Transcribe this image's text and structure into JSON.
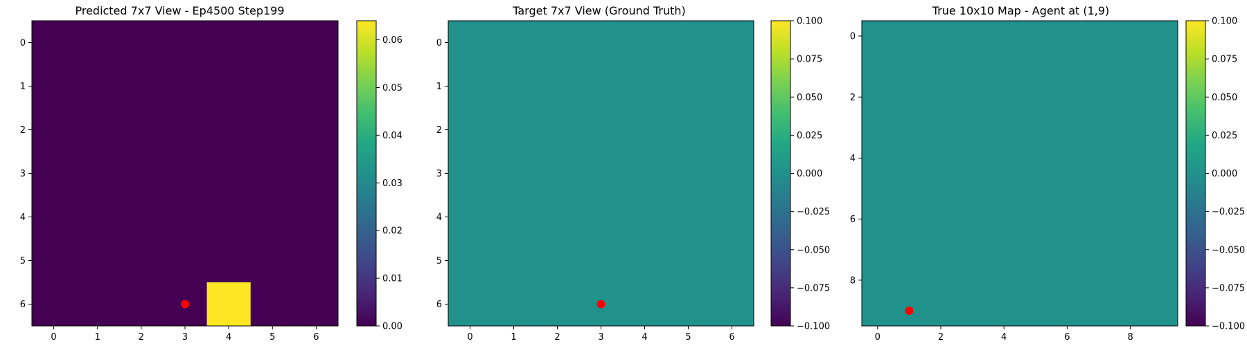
{
  "chart_data": [
    {
      "type": "heatmap",
      "title": "Predicted 7x7 View - Ep4500 Step199",
      "rows": 7,
      "cols": 7,
      "x_ticks": [
        0,
        1,
        2,
        3,
        4,
        5,
        6
      ],
      "y_ticks": [
        0,
        1,
        2,
        3,
        4,
        5,
        6
      ],
      "default_value": 0.0,
      "cells": [
        {
          "row": 6,
          "col": 4,
          "value": 0.064
        }
      ],
      "vmin": 0.0,
      "vmax": 0.064,
      "colormap": "viridis",
      "colorbar_ticks": [
        "0.00",
        "0.01",
        "0.02",
        "0.03",
        "0.04",
        "0.05",
        "0.06"
      ],
      "colorbar_tick_values": [
        0.0,
        0.01,
        0.02,
        0.03,
        0.04,
        0.05,
        0.06
      ],
      "agent_marker": {
        "x": 3,
        "y": 6,
        "color": "#ff0000"
      }
    },
    {
      "type": "heatmap",
      "title": "Target 7x7 View (Ground Truth)",
      "rows": 7,
      "cols": 7,
      "x_ticks": [
        0,
        1,
        2,
        3,
        4,
        5,
        6
      ],
      "y_ticks": [
        0,
        1,
        2,
        3,
        4,
        5,
        6
      ],
      "default_value": 0.0,
      "cells": [],
      "vmin": -0.1,
      "vmax": 0.1,
      "colormap": "viridis",
      "colorbar_ticks": [
        "0.100",
        "0.075",
        "0.050",
        "0.025",
        "0.000",
        "−0.025",
        "−0.050",
        "−0.075",
        "−0.100"
      ],
      "colorbar_tick_values": [
        0.1,
        0.075,
        0.05,
        0.025,
        0.0,
        -0.025,
        -0.05,
        -0.075,
        -0.1
      ],
      "agent_marker": {
        "x": 3,
        "y": 6,
        "color": "#ff0000"
      }
    },
    {
      "type": "heatmap",
      "title": "True 10x10 Map - Agent at (1,9)",
      "rows": 10,
      "cols": 10,
      "x_ticks": [
        0,
        2,
        4,
        6,
        8
      ],
      "y_ticks": [
        0,
        2,
        4,
        6,
        8
      ],
      "default_value": 0.0,
      "cells": [],
      "vmin": -0.1,
      "vmax": 0.1,
      "colormap": "viridis",
      "colorbar_ticks": [
        "0.100",
        "0.075",
        "0.050",
        "0.025",
        "0.000",
        "−0.025",
        "−0.050",
        "−0.075",
        "−0.100"
      ],
      "colorbar_tick_values": [
        0.1,
        0.075,
        0.05,
        0.025,
        0.0,
        -0.025,
        -0.05,
        -0.075,
        -0.1
      ],
      "agent_marker": {
        "x": 1,
        "y": 9,
        "color": "#ff0000"
      }
    }
  ]
}
